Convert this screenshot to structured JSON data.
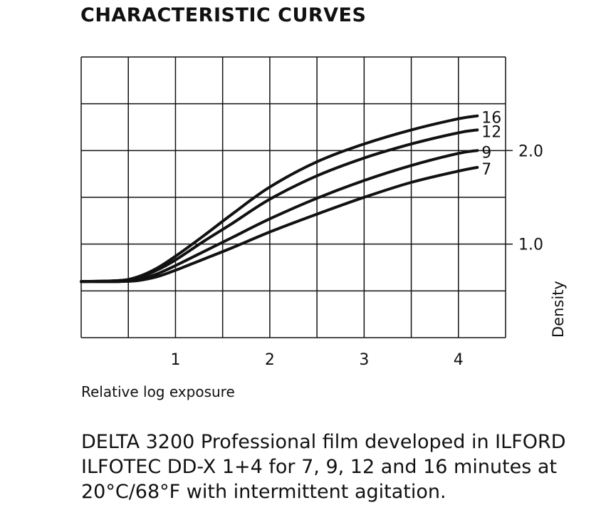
{
  "chart_data": {
    "type": "line",
    "title": "CHARACTERISTIC CURVES",
    "xlabel": "Relative log exposure",
    "ylabel": "Density",
    "xlim": [
      0,
      4.5
    ],
    "ylim": [
      0,
      3.0
    ],
    "x_ticks": [
      1,
      2,
      3,
      4
    ],
    "y_ticks": [
      1.0,
      2.0
    ],
    "x_tick_labels": [
      "1",
      "2",
      "3",
      "4"
    ],
    "y_tick_labels": [
      "1.0",
      "2.0"
    ],
    "grid": true,
    "series": [
      {
        "name": "16",
        "points": [
          [
            0,
            0.6
          ],
          [
            0.4,
            0.61
          ],
          [
            0.6,
            0.65
          ],
          [
            0.8,
            0.74
          ],
          [
            1.0,
            0.87
          ],
          [
            1.3,
            1.09
          ],
          [
            1.6,
            1.32
          ],
          [
            2.0,
            1.61
          ],
          [
            2.5,
            1.88
          ],
          [
            3.0,
            2.07
          ],
          [
            3.5,
            2.22
          ],
          [
            4.0,
            2.34
          ],
          [
            4.2,
            2.37
          ]
        ]
      },
      {
        "name": "12",
        "points": [
          [
            0,
            0.6
          ],
          [
            0.4,
            0.61
          ],
          [
            0.6,
            0.64
          ],
          [
            0.8,
            0.72
          ],
          [
            1.0,
            0.83
          ],
          [
            1.3,
            1.03
          ],
          [
            1.6,
            1.22
          ],
          [
            2.0,
            1.48
          ],
          [
            2.5,
            1.73
          ],
          [
            3.0,
            1.92
          ],
          [
            3.5,
            2.07
          ],
          [
            4.0,
            2.19
          ],
          [
            4.2,
            2.22
          ]
        ]
      },
      {
        "name": "9",
        "points": [
          [
            0,
            0.6
          ],
          [
            0.4,
            0.6
          ],
          [
            0.6,
            0.62
          ],
          [
            0.8,
            0.68
          ],
          [
            1.0,
            0.77
          ],
          [
            1.3,
            0.92
          ],
          [
            1.6,
            1.07
          ],
          [
            2.0,
            1.27
          ],
          [
            2.5,
            1.49
          ],
          [
            3.0,
            1.68
          ],
          [
            3.5,
            1.84
          ],
          [
            4.0,
            1.97
          ],
          [
            4.2,
            2.0
          ]
        ]
      },
      {
        "name": "7",
        "points": [
          [
            0,
            0.6
          ],
          [
            0.4,
            0.6
          ],
          [
            0.6,
            0.61
          ],
          [
            0.8,
            0.65
          ],
          [
            1.0,
            0.72
          ],
          [
            1.3,
            0.84
          ],
          [
            1.6,
            0.96
          ],
          [
            2.0,
            1.13
          ],
          [
            2.5,
            1.32
          ],
          [
            3.0,
            1.5
          ],
          [
            3.5,
            1.66
          ],
          [
            4.0,
            1.78
          ],
          [
            4.2,
            1.82
          ]
        ]
      }
    ]
  },
  "caption": "DELTA 3200 Professional film developed in ILFORD ILFOTEC DD-X 1+4 for 7, 9, 12 and 16 minutes at 20°C/68°F with intermittent agitation."
}
